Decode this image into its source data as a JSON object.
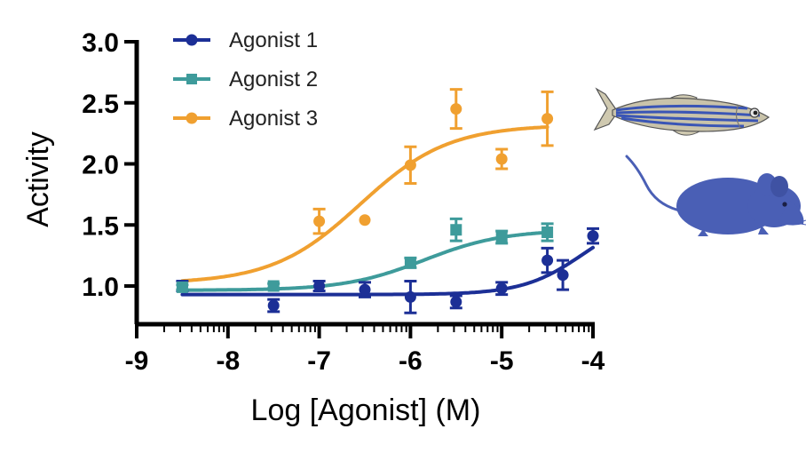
{
  "chart_data": {
    "type": "scatter",
    "title": "",
    "xlabel": "Log [Agonist] (M)",
    "ylabel": "Activity",
    "xlim": [
      -9,
      -4
    ],
    "ylim": [
      0.7,
      3.0
    ],
    "xticks": [
      -9,
      -8,
      -7,
      -6,
      -5,
      -4
    ],
    "xtick_labels": [
      "-9",
      "-8",
      "-7",
      "-6",
      "-5",
      "-4"
    ],
    "yticks": [
      1.0,
      1.5,
      2.0,
      2.5,
      3.0
    ],
    "ytick_labels": [
      "1.0",
      "1.5",
      "2.0",
      "2.5",
      "3.0"
    ],
    "legend_position": "top-left",
    "series": [
      {
        "name": "Agonist 1",
        "marker": "circle",
        "color": "#1c2f96",
        "points": [
          {
            "x": -8.5,
            "y": 1.0,
            "err": 0.04
          },
          {
            "x": -7.5,
            "y": 0.84,
            "err": 0.05
          },
          {
            "x": -7.0,
            "y": 1.0,
            "err": 0.04
          },
          {
            "x": -6.5,
            "y": 0.97,
            "err": 0.06
          },
          {
            "x": -6.0,
            "y": 0.91,
            "err": 0.13
          },
          {
            "x": -5.5,
            "y": 0.87,
            "err": 0.05
          },
          {
            "x": -5.0,
            "y": 0.98,
            "err": 0.05
          },
          {
            "x": -4.5,
            "y": 1.21,
            "err": 0.1
          },
          {
            "x": -4.33,
            "y": 1.09,
            "err": 0.12
          },
          {
            "x": -4.0,
            "y": 1.41,
            "err": 0.06
          }
        ],
        "fit": {
          "bottom": 0.93,
          "top": 1.6,
          "logEC50": -4.1,
          "hill": 1.3
        }
      },
      {
        "name": "Agonist 2",
        "marker": "square",
        "color": "#3e9b9b",
        "points": [
          {
            "x": -8.5,
            "y": 0.99,
            "err": 0.02
          },
          {
            "x": -7.5,
            "y": 1.0,
            "err": 0.02
          },
          {
            "x": -6.0,
            "y": 1.19,
            "err": 0.04
          },
          {
            "x": -5.5,
            "y": 1.46,
            "err": 0.09
          },
          {
            "x": -5.0,
            "y": 1.4,
            "err": 0.05
          },
          {
            "x": -4.5,
            "y": 1.44,
            "err": 0.07
          }
        ],
        "fit": {
          "bottom": 0.965,
          "top": 1.46,
          "logEC50": -5.85,
          "hill": 1.0
        }
      },
      {
        "name": "Agonist 3",
        "marker": "circle",
        "color": "#f0a030",
        "points": [
          {
            "x": -7.0,
            "y": 1.53,
            "err": 0.1
          },
          {
            "x": -6.5,
            "y": 1.54,
            "err": 0.0
          },
          {
            "x": -6.0,
            "y": 1.99,
            "err": 0.15
          },
          {
            "x": -5.5,
            "y": 2.45,
            "err": 0.16
          },
          {
            "x": -5.0,
            "y": 2.04,
            "err": 0.08
          },
          {
            "x": -4.5,
            "y": 2.37,
            "err": 0.22
          }
        ],
        "fit": {
          "bottom": 1.02,
          "top": 2.32,
          "logEC50": -6.55,
          "hill": 0.9
        }
      }
    ],
    "illustrations": [
      "zebrafish",
      "mouse"
    ]
  },
  "colors": {
    "axis": "#000000",
    "fish_body": "#c9c3aa",
    "fish_stripe": "#3a55b5",
    "mouse": "#4a5fb5"
  }
}
